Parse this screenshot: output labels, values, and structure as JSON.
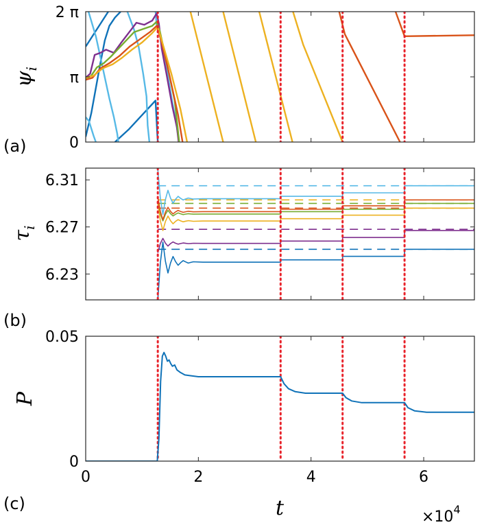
{
  "chart_data": [
    {
      "panel": "a",
      "panel_label": "(a)",
      "type": "line",
      "ylabel": "ψ",
      "ylabel_sub": "i",
      "ylim": [
        0,
        6.2832
      ],
      "xlim": [
        0,
        69000
      ],
      "yticks": [
        {
          "value": 0,
          "label": "0"
        },
        {
          "value": 3.1416,
          "label": "π"
        },
        {
          "value": 6.2832,
          "label": "2 π"
        }
      ],
      "series": [
        {
          "name": "ψ1",
          "color": "#0f72b8",
          "segments": [
            [
              [
                0,
                4.6
              ],
              [
                4000,
                6.2832
              ]
            ],
            [
              [
                0,
                0.25
              ],
              [
                1000,
                1.4
              ],
              [
                1800,
                2.6
              ],
              [
                2600,
                3.8
              ],
              [
                3400,
                4.9
              ],
              [
                4200,
                5.6
              ],
              [
                5200,
                6.0
              ],
              [
                6200,
                6.2832
              ]
            ],
            [
              [
                5200,
                0
              ],
              [
                7600,
                0.6
              ],
              [
                10000,
                1.3
              ],
              [
                12400,
                2.0
              ],
              [
                12700,
                0.4
              ],
              [
                12800,
                0
              ]
            ]
          ]
        },
        {
          "name": "ψ2",
          "color": "#56b9e6",
          "segments": [
            [
              [
                0,
                1.2
              ],
              [
                600,
                1.0
              ],
              [
                1400,
                0.3
              ],
              [
                1800,
                0
              ]
            ],
            [
              [
                500,
                6.2832
              ],
              [
                1800,
                5.1
              ],
              [
                3000,
                3.6
              ],
              [
                4200,
                2.1
              ],
              [
                5000,
                1.2
              ],
              [
                5600,
                0.4
              ],
              [
                5800,
                0
              ]
            ],
            [
              [
                7400,
                6.2832
              ],
              [
                8600,
                5.4
              ],
              [
                9400,
                4.6
              ],
              [
                10200,
                3.3
              ],
              [
                10800,
                2.2
              ],
              [
                11000,
                0.8
              ],
              [
                11300,
                0
              ]
            ],
            [
              [
                12400,
                6.2832
              ],
              [
                12600,
                5.6
              ],
              [
                13200,
                5.1
              ],
              [
                14200,
                3.8
              ],
              [
                15200,
                2.2
              ],
              [
                16000,
                1.0
              ],
              [
                16600,
                0
              ]
            ]
          ]
        },
        {
          "name": "ψ3",
          "color": "#7e2f8e",
          "segments": [
            [
              [
                0,
                3.1
              ],
              [
                800,
                3.3
              ],
              [
                1600,
                4.2
              ],
              [
                2600,
                4.3
              ],
              [
                3600,
                4.45
              ],
              [
                5000,
                4.3
              ],
              [
                6200,
                4.75
              ],
              [
                7600,
                5.25
              ],
              [
                9000,
                5.75
              ],
              [
                10400,
                5.65
              ],
              [
                11800,
                5.85
              ],
              [
                12600,
                6.2
              ],
              [
                13000,
                5.7
              ],
              [
                13500,
                4.5
              ],
              [
                14400,
                3.2
              ],
              [
                15400,
                1.7
              ],
              [
                16200,
                0.7
              ],
              [
                16500,
                0
              ]
            ]
          ]
        },
        {
          "name": "ψ4",
          "color": "#77ac30",
          "segments": [
            [
              [
                0,
                3.05
              ],
              [
                1000,
                3.2
              ],
              [
                2000,
                3.6
              ],
              [
                3200,
                3.8
              ],
              [
                4400,
                4.1
              ],
              [
                5800,
                4.5
              ],
              [
                7200,
                4.9
              ],
              [
                8600,
                5.3
              ],
              [
                10200,
                5.45
              ],
              [
                11800,
                5.6
              ],
              [
                12600,
                5.8
              ],
              [
                13200,
                5.3
              ],
              [
                14400,
                3.8
              ],
              [
                15800,
                2.0
              ],
              [
                16600,
                0
              ]
            ]
          ]
        },
        {
          "name": "ψ5",
          "color": "#d95319",
          "segments": [
            [
              [
                0,
                3.0
              ],
              [
                1200,
                3.1
              ],
              [
                2600,
                3.55
              ],
              [
                4200,
                3.8
              ],
              [
                6000,
                4.15
              ],
              [
                7800,
                4.6
              ],
              [
                9600,
                4.95
              ],
              [
                11400,
                5.3
              ],
              [
                12600,
                5.6
              ],
              [
                13400,
                4.9
              ],
              [
                14800,
                3.3
              ],
              [
                16400,
                1.3
              ],
              [
                17200,
                0
              ]
            ],
            [
              [
                45000,
                6.2832
              ],
              [
                46000,
                5.2
              ],
              [
                55800,
                0
              ]
            ],
            [
              [
                55000,
                6.2832
              ],
              [
                56600,
                5.1
              ],
              [
                69000,
                5.15
              ]
            ]
          ]
        },
        {
          "name": "ψ6",
          "color": "#edb120",
          "segments": [
            [
              [
                0,
                3.1
              ],
              [
                1400,
                3.2
              ],
              [
                3000,
                3.55
              ],
              [
                4800,
                3.75
              ],
              [
                6400,
                4.05
              ],
              [
                8200,
                4.45
              ],
              [
                10000,
                4.8
              ],
              [
                11800,
                5.25
              ],
              [
                12800,
                5.55
              ],
              [
                13600,
                4.8
              ],
              [
                15200,
                3.3
              ],
              [
                16800,
                1.6
              ],
              [
                18000,
                0
              ]
            ],
            [
              [
                18600,
                6.2832
              ],
              [
                24400,
                0
              ]
            ],
            [
              [
                24400,
                6.2832
              ],
              [
                30200,
                0
              ]
            ],
            [
              [
                30800,
                6.2832
              ],
              [
                36700,
                0
              ]
            ],
            [
              [
                36800,
                6.2832
              ],
              [
                38600,
                4.7
              ],
              [
                45600,
                0
              ]
            ]
          ]
        }
      ],
      "markers": [
        12800,
        34600,
        45600,
        56600
      ]
    },
    {
      "panel": "b",
      "panel_label": "(b)",
      "type": "line",
      "ylabel": "τ",
      "ylabel_sub": "i",
      "ylim": [
        6.208,
        6.32
      ],
      "xlim": [
        0,
        69000
      ],
      "yticks": [
        {
          "value": 6.23,
          "label": "6.23"
        },
        {
          "value": 6.27,
          "label": "6.27"
        },
        {
          "value": 6.31,
          "label": "6.31"
        }
      ],
      "dashed": [
        {
          "color": "#0f72b8",
          "value": 6.251
        },
        {
          "color": "#56b9e6",
          "value": 6.305
        },
        {
          "color": "#7e2f8e",
          "value": 6.268
        },
        {
          "color": "#77ac30",
          "value": 6.29
        },
        {
          "color": "#d95319",
          "value": 6.286
        },
        {
          "color": "#edb120",
          "value": 6.293
        }
      ],
      "series": [
        {
          "name": "τ1",
          "color": "#0f72b8",
          "start": 6.208,
          "levels": [
            6.24,
            6.242,
            6.245,
            6.251
          ]
        },
        {
          "name": "τ2",
          "color": "#56b9e6",
          "start": 6.319,
          "levels": [
            6.294,
            6.296,
            6.299,
            6.305
          ]
        },
        {
          "name": "τ3",
          "color": "#7e2f8e",
          "start": 6.248,
          "levels": [
            6.256,
            6.258,
            6.261,
            6.267
          ]
        },
        {
          "name": "τ4",
          "color": "#77ac30",
          "start": 6.292,
          "levels": [
            6.281,
            6.283,
            6.285,
            6.29
          ]
        },
        {
          "name": "τ5",
          "color": "#d95319",
          "start": 6.296,
          "levels": [
            6.283,
            6.285,
            6.288,
            6.293
          ]
        },
        {
          "name": "τ6",
          "color": "#edb120",
          "start": 6.29,
          "levels": [
            6.275,
            6.277,
            6.28,
            6.286
          ]
        }
      ],
      "markers": [
        12800,
        34600,
        45600,
        56600
      ]
    },
    {
      "panel": "c",
      "panel_label": "(c)",
      "type": "line",
      "ylabel": "P",
      "ylim": [
        0,
        0.05
      ],
      "xlim": [
        0,
        69000
      ],
      "xlabel": "t",
      "xticks": [
        {
          "value": 0,
          "label": "0"
        },
        {
          "value": 20000,
          "label": "2"
        },
        {
          "value": 40000,
          "label": "4"
        },
        {
          "value": 60000,
          "label": "6"
        }
      ],
      "x_multiplier_base": "×10",
      "x_multiplier_exp": "4",
      "yticks": [
        {
          "value": 0,
          "label": "0"
        },
        {
          "value": 0.05,
          "label": "0.05"
        }
      ],
      "series": [
        {
          "name": "P",
          "color": "#0f72b8",
          "points": [
            [
              0,
              0
            ],
            [
              12700,
              0
            ],
            [
              13000,
              0.009
            ],
            [
              13300,
              0.032
            ],
            [
              13600,
              0.042
            ],
            [
              13900,
              0.0435
            ],
            [
              14200,
              0.042
            ],
            [
              14500,
              0.04
            ],
            [
              14800,
              0.0405
            ],
            [
              15100,
              0.039
            ],
            [
              15400,
              0.038
            ],
            [
              15800,
              0.0385
            ],
            [
              16200,
              0.0365
            ],
            [
              16800,
              0.0355
            ],
            [
              17600,
              0.0345
            ],
            [
              18600,
              0.0342
            ],
            [
              20000,
              0.0338
            ],
            [
              34600,
              0.0338
            ],
            [
              35200,
              0.031
            ],
            [
              36000,
              0.029
            ],
            [
              37200,
              0.0278
            ],
            [
              39000,
              0.0272
            ],
            [
              45600,
              0.0272
            ],
            [
              46200,
              0.0254
            ],
            [
              47200,
              0.0241
            ],
            [
              49000,
              0.0234
            ],
            [
              56600,
              0.0234
            ],
            [
              57200,
              0.0214
            ],
            [
              58400,
              0.0201
            ],
            [
              60500,
              0.0196
            ],
            [
              69000,
              0.0196
            ]
          ]
        }
      ],
      "markers": [
        12800,
        34600,
        45600,
        56600
      ]
    }
  ]
}
